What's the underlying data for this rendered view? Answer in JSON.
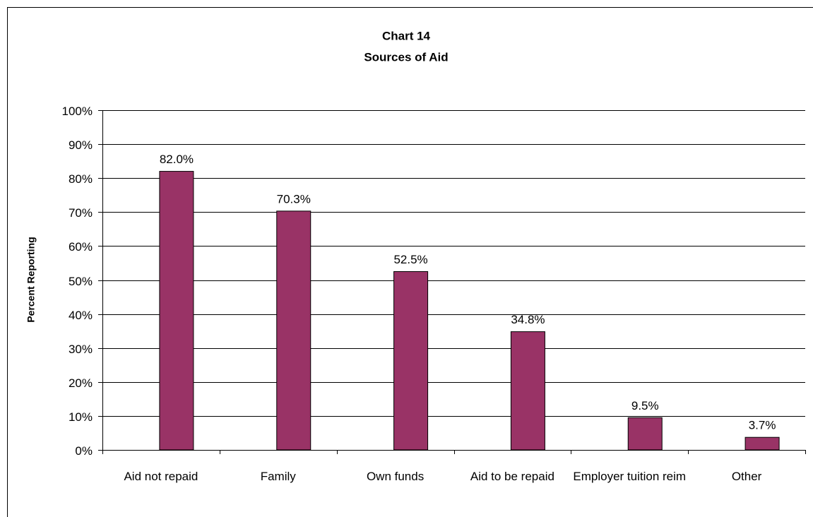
{
  "chart_data": {
    "type": "bar",
    "title": "Chart 14",
    "subtitle": "Sources of Aid",
    "y_label": "Percent Reporting",
    "categories": [
      "Aid not repaid",
      "Family",
      "Own funds",
      "Aid to be repaid",
      "Employer tuition reim",
      "Other"
    ],
    "values": [
      82.0,
      70.3,
      52.5,
      34.8,
      9.5,
      3.7
    ],
    "value_labels": [
      "82.0%",
      "70.3%",
      "52.5%",
      "34.8%",
      "9.5%",
      "3.7%"
    ],
    "color": "#993366",
    "ylim": [
      0,
      100
    ],
    "yticks": [
      {
        "value": 0,
        "label": "0%"
      },
      {
        "value": 10,
        "label": "10%"
      },
      {
        "value": 20,
        "label": "20%"
      },
      {
        "value": 30,
        "label": "30%"
      },
      {
        "value": 40,
        "label": "40%"
      },
      {
        "value": 50,
        "label": "50%"
      },
      {
        "value": 60,
        "label": "60%"
      },
      {
        "value": 70,
        "label": "70%"
      },
      {
        "value": 80,
        "label": "80%"
      },
      {
        "value": 90,
        "label": "90%"
      },
      {
        "value": 100,
        "label": "100%"
      }
    ],
    "grid": true
  }
}
